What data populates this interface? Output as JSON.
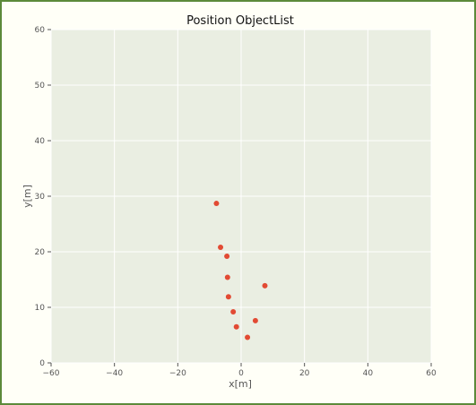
{
  "chart_data": {
    "type": "scatter",
    "title": "Position ObjectList",
    "xlabel": "x[m]",
    "ylabel": "y[m]",
    "xlim": [
      -60,
      60
    ],
    "ylim": [
      0,
      60
    ],
    "xticks": [
      -60,
      -40,
      -20,
      0,
      20,
      40,
      60
    ],
    "yticks": [
      0,
      10,
      20,
      30,
      40,
      50,
      60
    ],
    "xtick_labels": [
      "−60",
      "−40",
      "−20",
      "0",
      "20",
      "40",
      "60"
    ],
    "ytick_labels": [
      "0",
      "10",
      "20",
      "30",
      "40",
      "50",
      "60"
    ],
    "grid": true,
    "colors": {
      "plot_background": "#eaeee2",
      "grid": "#ffffff",
      "marker": "#e24a33",
      "frame_border": "#5c8a3a"
    },
    "series": [
      {
        "x": [
          -7.8,
          -6.5,
          -4.5,
          -4.3,
          -4.0,
          -2.5,
          -1.5,
          2.0,
          4.5,
          7.5
        ],
        "y": [
          28.7,
          20.8,
          19.2,
          15.4,
          11.9,
          9.2,
          6.5,
          4.6,
          7.6,
          13.9
        ]
      }
    ]
  }
}
